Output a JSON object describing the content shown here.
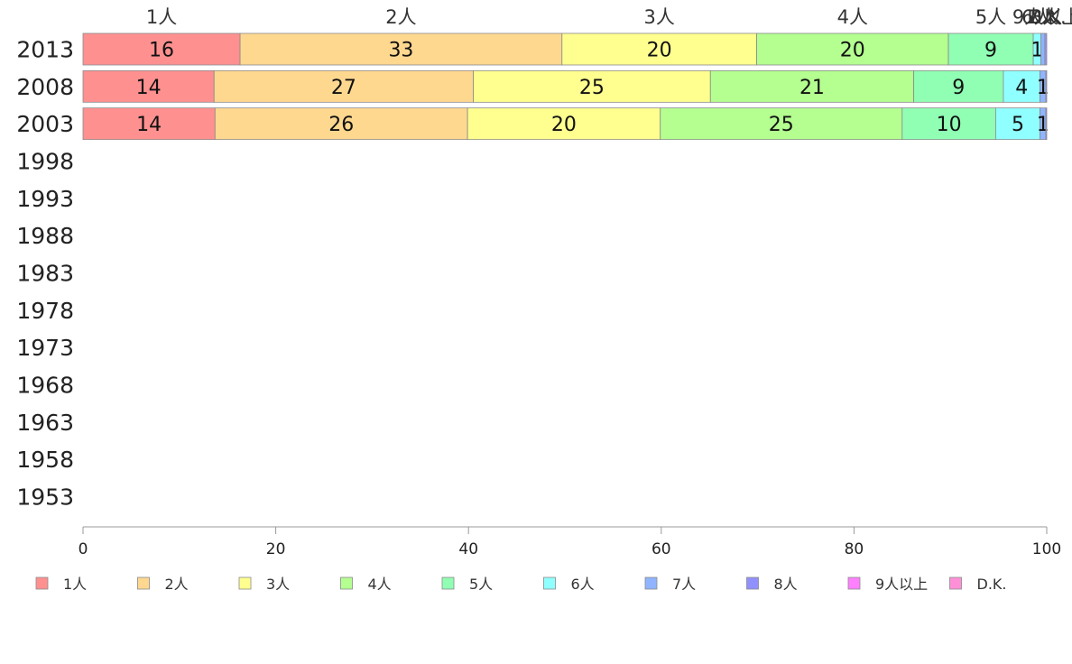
{
  "chart_data": {
    "type": "bar",
    "orientation": "horizontal",
    "stacked": true,
    "title": "",
    "xlabel": "",
    "ylabel": "",
    "xlim": [
      0,
      100
    ],
    "x_ticks": [
      "0",
      "20",
      "40",
      "60",
      "80",
      "100"
    ],
    "grid": false,
    "legend_position": "bottom",
    "categories": [
      "2013",
      "2008",
      "2003",
      "1998",
      "1993",
      "1988",
      "1983",
      "1978",
      "1973",
      "1968",
      "1963",
      "1958",
      "1953"
    ],
    "top_labels": [
      "1人",
      "2人",
      "3人",
      "4人",
      "5人",
      "6人",
      "7人",
      "8人",
      "9人以上",
      "D.K."
    ],
    "series": [
      {
        "name": "1人",
        "color": "#ff9090",
        "values": [
          16.3,
          13.6,
          13.7,
          null,
          null,
          null,
          null,
          null,
          null,
          null,
          null,
          null,
          null
        ],
        "labels": [
          "16",
          "14",
          "14"
        ]
      },
      {
        "name": "2人",
        "color": "#ffd890",
        "values": [
          33.4,
          26.9,
          26.2,
          null,
          null,
          null,
          null,
          null,
          null,
          null,
          null,
          null,
          null
        ],
        "labels": [
          "33",
          "27",
          "26"
        ]
      },
      {
        "name": "3人",
        "color": "#ffff90",
        "values": [
          20.2,
          24.6,
          20.0,
          null,
          null,
          null,
          null,
          null,
          null,
          null,
          null,
          null,
          null
        ],
        "labels": [
          "20",
          "25",
          "20"
        ]
      },
      {
        "name": "4人",
        "color": "#b4ff90",
        "values": [
          19.9,
          21.1,
          25.1,
          null,
          null,
          null,
          null,
          null,
          null,
          null,
          null,
          null,
          null
        ],
        "labels": [
          "20",
          "21",
          "25"
        ]
      },
      {
        "name": "5人",
        "color": "#90ffb4",
        "values": [
          8.8,
          9.3,
          9.7,
          null,
          null,
          null,
          null,
          null,
          null,
          null,
          null,
          null,
          null
        ],
        "labels": [
          "9",
          "9",
          "10"
        ]
      },
      {
        "name": "6人",
        "color": "#90ffff",
        "values": [
          0.8,
          3.8,
          4.6,
          null,
          null,
          null,
          null,
          null,
          null,
          null,
          null,
          null,
          null
        ],
        "labels": [
          "1",
          "4",
          "5"
        ]
      },
      {
        "name": "7人",
        "color": "#90b4ff",
        "values": [
          0.4,
          0.6,
          0.6,
          null,
          null,
          null,
          null,
          null,
          null,
          null,
          null,
          null,
          null
        ],
        "labels": [
          "",
          "1",
          "1"
        ]
      },
      {
        "name": "8人",
        "color": "#9090ff",
        "values": [
          0.2,
          0.1,
          0.1,
          null,
          null,
          null,
          null,
          null,
          null,
          null,
          null,
          null,
          null
        ],
        "labels": [
          "",
          "",
          ""
        ]
      },
      {
        "name": "9人以上",
        "color": "#ff80ff",
        "values": [
          0.0,
          0.0,
          0.0,
          null,
          null,
          null,
          null,
          null,
          null,
          null,
          null,
          null,
          null
        ],
        "labels": [
          "",
          "",
          ""
        ]
      },
      {
        "name": "D.K.",
        "color": "#ff90d8",
        "values": [
          0.0,
          0.0,
          0.0,
          null,
          null,
          null,
          null,
          null,
          null,
          null,
          null,
          null,
          null
        ],
        "labels": [
          "",
          "",
          ""
        ]
      }
    ]
  }
}
